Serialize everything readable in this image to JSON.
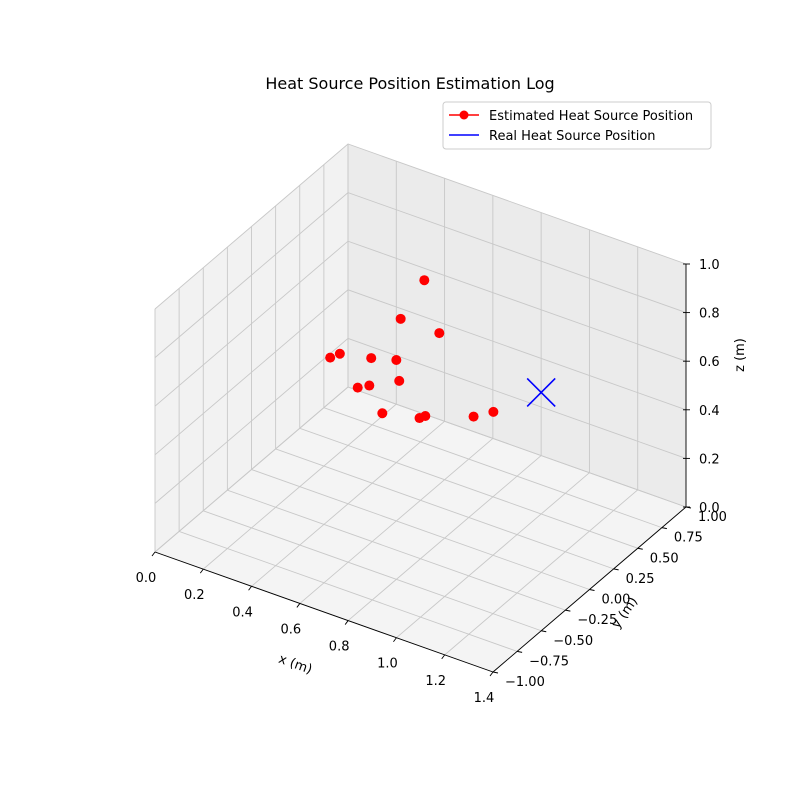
{
  "chart_data": {
    "type": "scatter",
    "projection": "3d",
    "title": "Heat Source Position Estimation Log",
    "xlabel": "x (m)",
    "ylabel": "y (m)",
    "zlabel": "z (m)",
    "xlim": [
      0,
      1.4
    ],
    "ylim": [
      -1,
      1
    ],
    "zlim": [
      0,
      1
    ],
    "xticks": [
      "0.0",
      "0.2",
      "0.4",
      "0.6",
      "0.8",
      "1.0",
      "1.2",
      "1.4"
    ],
    "yticks": [
      "−1.00",
      "−0.75",
      "−0.50",
      "−0.25",
      "0.00",
      "0.25",
      "0.50",
      "0.75",
      "1.00"
    ],
    "zticks": [
      "0.0",
      "0.2",
      "0.4",
      "0.6",
      "0.8",
      "1.0"
    ],
    "grid": true,
    "legend_position": "upper-right",
    "series": [
      {
        "name": "Estimated Heat Source Position",
        "color": "#ff0000",
        "marker": "circle",
        "points": [
          {
            "x": 0.59,
            "y": 0.47,
            "z": 0.61
          },
          {
            "x": 0.44,
            "y": 0.69,
            "z": 0.7
          },
          {
            "x": 0.37,
            "y": 0.62,
            "z": 0.54
          },
          {
            "x": 0.36,
            "y": 0.34,
            "z": 0.47
          },
          {
            "x": 0.23,
            "y": 0.24,
            "z": 0.46
          },
          {
            "x": 0.27,
            "y": 0.24,
            "z": 0.49
          },
          {
            "x": 0.38,
            "y": 0.15,
            "z": 0.42
          },
          {
            "x": 0.44,
            "y": 0.12,
            "z": 0.46
          },
          {
            "x": 0.52,
            "y": 0.23,
            "z": 0.47
          },
          {
            "x": 0.44,
            "y": 0.4,
            "z": 0.47
          },
          {
            "x": 0.81,
            "y": 0.48,
            "z": 0.36
          },
          {
            "x": 0.76,
            "y": 0.4,
            "z": 0.35
          },
          {
            "x": 0.64,
            "y": 0.14,
            "z": 0.39
          },
          {
            "x": 0.6,
            "y": 0.3,
            "z": 0.33
          },
          {
            "x": 0.39,
            "y": 0.38,
            "z": 0.24
          }
        ]
      },
      {
        "name": "Real Heat Source Position",
        "color": "#0000ff",
        "marker": "x",
        "points": [
          {
            "x": 1.0,
            "y": 0.5,
            "z": 0.5
          }
        ]
      }
    ]
  }
}
